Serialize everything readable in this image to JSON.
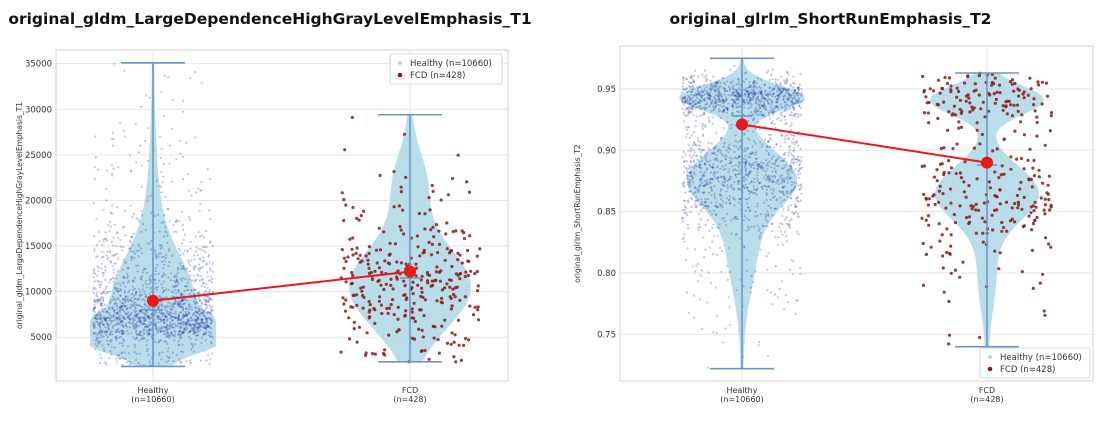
{
  "colors": {
    "violin_fill": "#add8e6",
    "violin_edge": "#6b97c8",
    "healthy_point": "#1f2fa0",
    "fcd_point": "#8b1a1a",
    "mean_line": "#e8191b",
    "grid": "#e6e6e6",
    "axes_border": "#d0d0d0"
  },
  "chart_data": [
    {
      "type": "scatter",
      "title": "original_gldm_LargeDependenceHighGrayLevelEmphasis_T1",
      "ylabel": "original_gldm_LargeDependenceHighGrayLevelEmphasis_T1",
      "xlabel": "",
      "ylim": [
        200,
        36500
      ],
      "yticks": [
        5000,
        10000,
        15000,
        20000,
        25000,
        30000,
        35000
      ],
      "grid": true,
      "legend_position": "top-right",
      "categories": [
        {
          "label": "Healthy",
          "count": "(n=10660)"
        },
        {
          "label": "FCD",
          "count": "(n=428)"
        }
      ],
      "series": [
        {
          "name": "Healthy (n=10660)",
          "min": 1800,
          "max": 35100,
          "mean": 9000,
          "median": 8000,
          "mode": 5200
        },
        {
          "name": "FCD (n=428)",
          "min": 2300,
          "max": 29400,
          "mean": 12200,
          "median": 11500,
          "mode": 10500
        }
      ],
      "mean_line": [
        [
          0,
          9000
        ],
        [
          1,
          12200
        ]
      ]
    },
    {
      "type": "scatter",
      "title": "original_glrlm_ShortRunEmphasis_T2",
      "ylabel": "original_glrlm_ShortRunEmphasis_T2",
      "xlabel": "",
      "ylim": [
        0.712,
        0.985
      ],
      "yticks": [
        0.75,
        0.8,
        0.85,
        0.9,
        0.95
      ],
      "grid": true,
      "legend_position": "bottom-right",
      "categories": [
        {
          "label": "Healthy",
          "count": "(n=10660)"
        },
        {
          "label": "FCD",
          "count": "(n=428)"
        }
      ],
      "series": [
        {
          "name": "Healthy (n=10660)",
          "min": 0.722,
          "max": 0.975,
          "mean": 0.921,
          "median": 0.928,
          "modes": [
            0.943,
            0.878
          ]
        },
        {
          "name": "FCD (n=428)",
          "min": 0.74,
          "max": 0.963,
          "mean": 0.89,
          "median": 0.888,
          "modes": [
            0.941,
            0.865
          ]
        }
      ],
      "mean_line": [
        [
          0,
          0.921
        ],
        [
          1,
          0.89
        ]
      ]
    }
  ]
}
